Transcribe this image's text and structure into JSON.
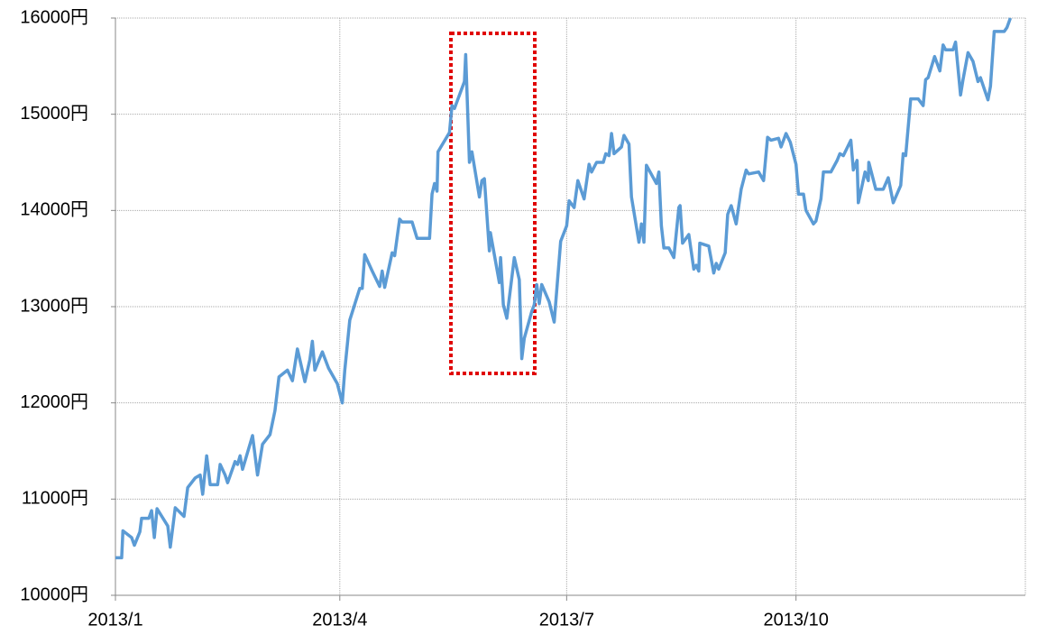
{
  "chart_data": {
    "type": "line",
    "xlim": [
      0,
      365
    ],
    "xticks": [
      {
        "value": 0,
        "label": "2013/1"
      },
      {
        "value": 90,
        "label": "2013/4"
      },
      {
        "value": 181,
        "label": "2013/7"
      },
      {
        "value": 273,
        "label": "2013/10"
      }
    ],
    "ylim": [
      10000,
      16000
    ],
    "yticks": [
      {
        "value": 10000,
        "label": "10000円"
      },
      {
        "value": 11000,
        "label": "11000円"
      },
      {
        "value": 12000,
        "label": "12000円"
      },
      {
        "value": 13000,
        "label": "13000円"
      },
      {
        "value": 14000,
        "label": "14000円"
      },
      {
        "value": 15000,
        "label": "15000円"
      },
      {
        "value": 16000,
        "label": "16000円"
      }
    ],
    "grid": true,
    "series": [
      {
        "color": "#5b9bd5",
        "x": [
          0,
          2.5,
          3,
          6.5,
          7.6,
          9.8,
          10.5,
          13.4,
          14.5,
          15.6,
          16.7,
          21,
          22,
          24,
          27.5,
          29,
          32,
          34,
          35,
          36.6,
          38,
          41,
          42,
          44,
          45,
          48,
          49,
          50,
          51,
          55,
          57,
          59,
          62,
          64,
          65.6,
          69,
          71,
          73,
          76,
          78,
          79,
          80,
          83,
          85.5,
          89,
          91,
          92,
          94,
          98,
          99,
          100,
          103,
          106,
          107,
          108,
          111,
          112,
          114,
          115,
          119,
          121,
          126,
          127,
          128,
          129,
          129.4,
          134,
          135,
          136,
          140,
          140.5,
          142,
          143,
          146,
          147,
          148,
          150,
          150.4,
          154,
          154.5,
          155.6,
          157,
          160,
          162,
          163,
          164,
          167,
          168,
          169,
          170,
          171,
          174,
          176,
          178.6,
          181,
          182,
          184,
          185.5,
          188,
          190,
          191,
          193,
          195.7,
          196.7,
          198,
          199,
          200,
          203,
          204,
          206,
          207,
          210,
          211,
          212,
          213,
          217,
          218,
          219,
          220,
          222,
          224,
          226,
          226.5,
          227.5,
          230,
          232,
          233,
          234,
          234.4,
          238,
          240,
          241,
          242,
          244.6,
          245.6,
          247,
          249,
          251,
          253,
          254,
          258,
          260,
          261.6,
          263,
          266,
          267,
          269,
          270.7,
          273,
          274,
          276,
          277,
          280,
          281,
          283,
          284,
          287,
          289.5,
          290.6,
          292,
          295,
          296,
          297.5,
          298,
          300.7,
          302,
          302.2,
          305,
          308,
          310,
          312,
          315,
          316,
          317,
          319,
          322,
          324,
          325,
          326,
          328.6,
          330.7,
          332,
          333,
          336,
          337,
          339,
          340,
          342,
          344,
          346,
          347,
          350,
          351,
          352.5,
          356.5,
          357.6,
          359
        ],
        "values": [
          10390,
          10390,
          10670,
          10600,
          10520,
          10660,
          10800,
          10800,
          10880,
          10600,
          10900,
          10720,
          10500,
          10910,
          10820,
          11120,
          11220,
          11250,
          11050,
          11450,
          11150,
          11150,
          11360,
          11250,
          11170,
          11390,
          11360,
          11450,
          11310,
          11660,
          11250,
          11570,
          11670,
          11920,
          12270,
          12340,
          12230,
          12560,
          12220,
          12450,
          12640,
          12340,
          12530,
          12360,
          12200,
          12000,
          12340,
          12860,
          13190,
          13190,
          13540,
          13370,
          13210,
          13370,
          13200,
          13560,
          13530,
          13910,
          13880,
          13880,
          13710,
          13710,
          14170,
          14280,
          14200,
          14610,
          14810,
          15090,
          15060,
          15340,
          15620,
          14500,
          14610,
          14140,
          14310,
          14330,
          13580,
          13770,
          13250,
          13510,
          13020,
          12880,
          13510,
          13280,
          12460,
          12670,
          12950,
          13020,
          13230,
          13030,
          13230,
          13050,
          12840,
          13680,
          13840,
          14100,
          14030,
          14310,
          14120,
          14480,
          14400,
          14500,
          14500,
          14590,
          14570,
          14800,
          14590,
          14660,
          14780,
          14690,
          14140,
          13670,
          13860,
          13670,
          14470,
          14280,
          14400,
          13840,
          13610,
          13610,
          13510,
          14030,
          14050,
          13660,
          13750,
          13390,
          13430,
          13370,
          13660,
          13630,
          13350,
          13450,
          13390,
          13560,
          13960,
          14050,
          13860,
          14220,
          14420,
          14380,
          14400,
          14310,
          14760,
          14730,
          14750,
          14660,
          14800,
          14710,
          14480,
          14170,
          14170,
          14000,
          13860,
          13890,
          14120,
          14400,
          14400,
          14520,
          14590,
          14570,
          14730,
          14420,
          14520,
          14080,
          14400,
          14310,
          14500,
          14220,
          14220,
          14340,
          14080,
          14260,
          14590,
          14570,
          15160,
          15160,
          15090,
          15360,
          15380,
          15600,
          15450,
          15720,
          15670,
          15670,
          15750,
          15200,
          15360,
          15640,
          15550,
          15340,
          15380,
          15150,
          15290,
          15860,
          15860,
          15900,
          16000
        ]
      }
    ]
  }
}
